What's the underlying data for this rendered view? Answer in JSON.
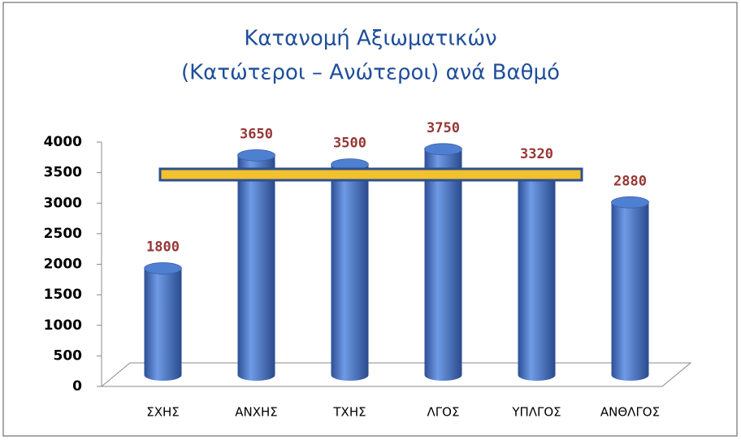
{
  "chart_data": {
    "type": "bar",
    "title": "Κατανομή Αξιωματικών",
    "subtitle": "(Κατώτεροι – Ανώτεροι) ανά Βαθμό",
    "categories": [
      "ΣΧΗΣ",
      "ΑΝΧΗΣ",
      "ΤΧΗΣ",
      "ΛΓΟΣ",
      "ΥΠΛΓΟΣ",
      "ΑΝΘΛΓΟΣ"
    ],
    "values": [
      1800,
      3650,
      3500,
      3750,
      3320,
      2880
    ],
    "color": "#4f7fd0",
    "ylim": [
      0,
      4000
    ],
    "yticks": [
      0,
      500,
      1000,
      1500,
      2000,
      2500,
      3000,
      3500,
      4000
    ],
    "grid": false
  }
}
